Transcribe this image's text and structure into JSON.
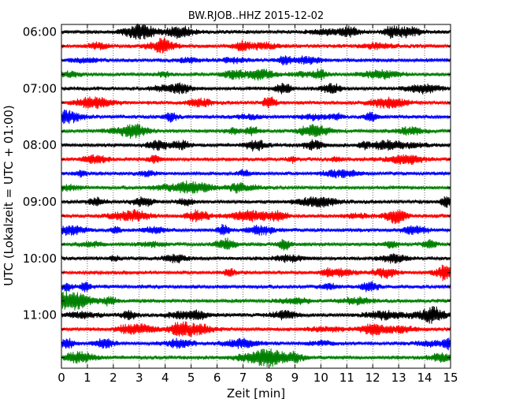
{
  "chart_data": {
    "type": "line",
    "title": "BW.RJOB..HHZ 2015-12-02",
    "xlabel": "Zeit  [min]",
    "ylabel": "UTC (Lokalzeit = UTC + 01:00)",
    "xlim": [
      0,
      15
    ],
    "x_ticks": [
      "0",
      "1",
      "2",
      "3",
      "4",
      "5",
      "6",
      "7",
      "8",
      "9",
      "10",
      "11",
      "12",
      "13",
      "14",
      "15"
    ],
    "x_grid": "dotted vertical lines at each minute",
    "y_tick_labels": [
      "06:00",
      "07:00",
      "08:00",
      "09:00",
      "10:00",
      "11:00"
    ],
    "trace_start_time": "06:00",
    "trace_interval_minutes": 15,
    "trace_count": 24,
    "trace_colors": [
      "#000000",
      "#ff0000",
      "#0000ff",
      "#008000"
    ]
  }
}
